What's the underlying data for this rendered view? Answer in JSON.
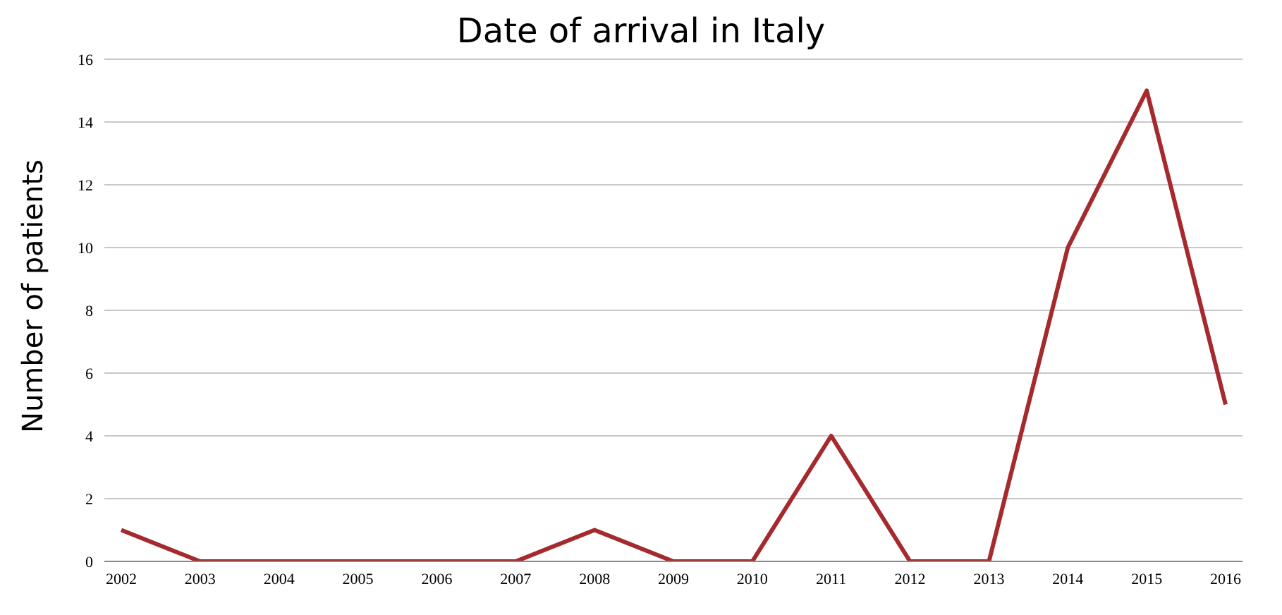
{
  "chart_data": {
    "type": "line",
    "title": "Date of arrival in Italy",
    "ylabel": "Number of patients",
    "categories": [
      "2002",
      "2003",
      "2004",
      "2005",
      "2006",
      "2007",
      "2008",
      "2009",
      "2010",
      "2011",
      "2012",
      "2013",
      "2014",
      "2015",
      "2016"
    ],
    "series": [
      {
        "color": "#a52a2e",
        "values": [
          1,
          0,
          0,
          0,
          0,
          0,
          1,
          0,
          0,
          4,
          0,
          0,
          10,
          15,
          5
        ]
      }
    ],
    "ylim": [
      0,
      16
    ],
    "yticks": [
      0,
      2,
      4,
      6,
      8,
      10,
      12,
      14,
      16
    ],
    "grid": "y",
    "marker": "none",
    "line_style": "solid"
  }
}
